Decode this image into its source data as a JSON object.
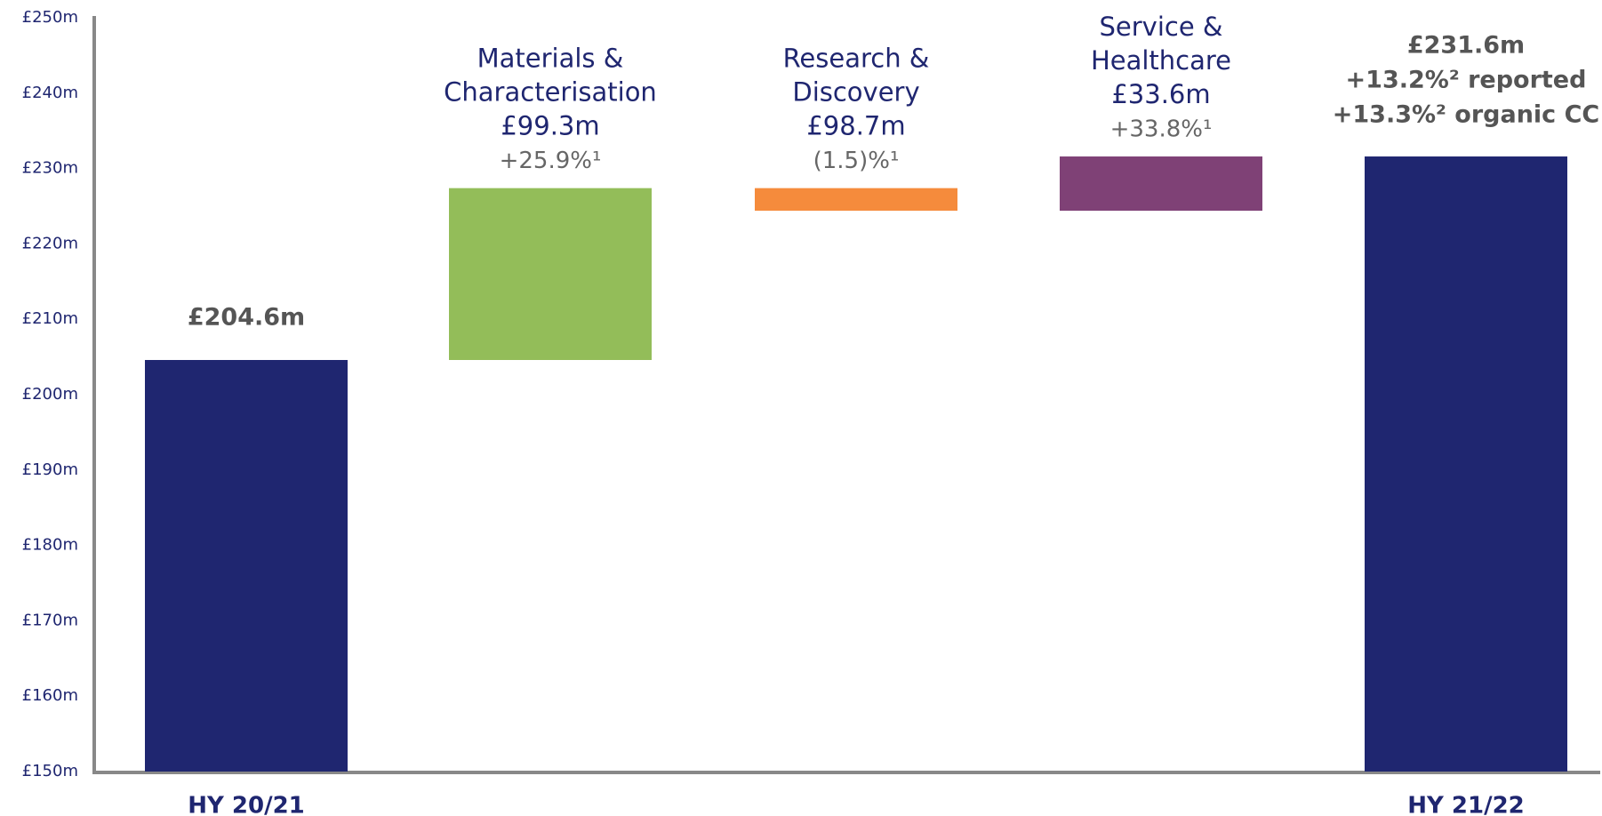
{
  "chart_data": {
    "type": "waterfall",
    "categories": [
      "HY 20/21",
      null,
      null,
      null,
      "HY 21/22"
    ],
    "measure": [
      "absolute",
      "relative",
      "relative",
      "relative",
      "total"
    ],
    "values": [
      204.6,
      22.8,
      -3.0,
      7.2,
      231.6
    ],
    "colors": [
      "#1f2670",
      "#93bd59",
      "#f58b3c",
      "#7f4176",
      "#1f2670"
    ],
    "annotations": [
      [
        "£204.6m"
      ],
      [
        "Materials &",
        "Characterisation",
        "£99.3m",
        "+25.9%¹"
      ],
      [
        "Research &",
        "Discovery",
        "£98.7m",
        "(1.5)%¹"
      ],
      [
        "Service &",
        "Healthcare",
        "£33.6m",
        "+33.8%¹"
      ],
      [
        "£231.6m",
        "+13.2%² reported",
        "+13.3%² organic CC"
      ]
    ],
    "ylim": [
      150,
      250
    ],
    "yticks": [
      {
        "value": 150,
        "label": "£150m"
      },
      {
        "value": 160,
        "label": "£160m"
      },
      {
        "value": 170,
        "label": "£170m"
      },
      {
        "value": 180,
        "label": "£180m"
      },
      {
        "value": 190,
        "label": "£190m"
      },
      {
        "value": 200,
        "label": "£200m"
      },
      {
        "value": 210,
        "label": "£210m"
      },
      {
        "value": 220,
        "label": "£220m"
      },
      {
        "value": 230,
        "label": "£230m"
      },
      {
        "value": 240,
        "label": "£240m"
      },
      {
        "value": 250,
        "label": "£250m"
      }
    ]
  }
}
